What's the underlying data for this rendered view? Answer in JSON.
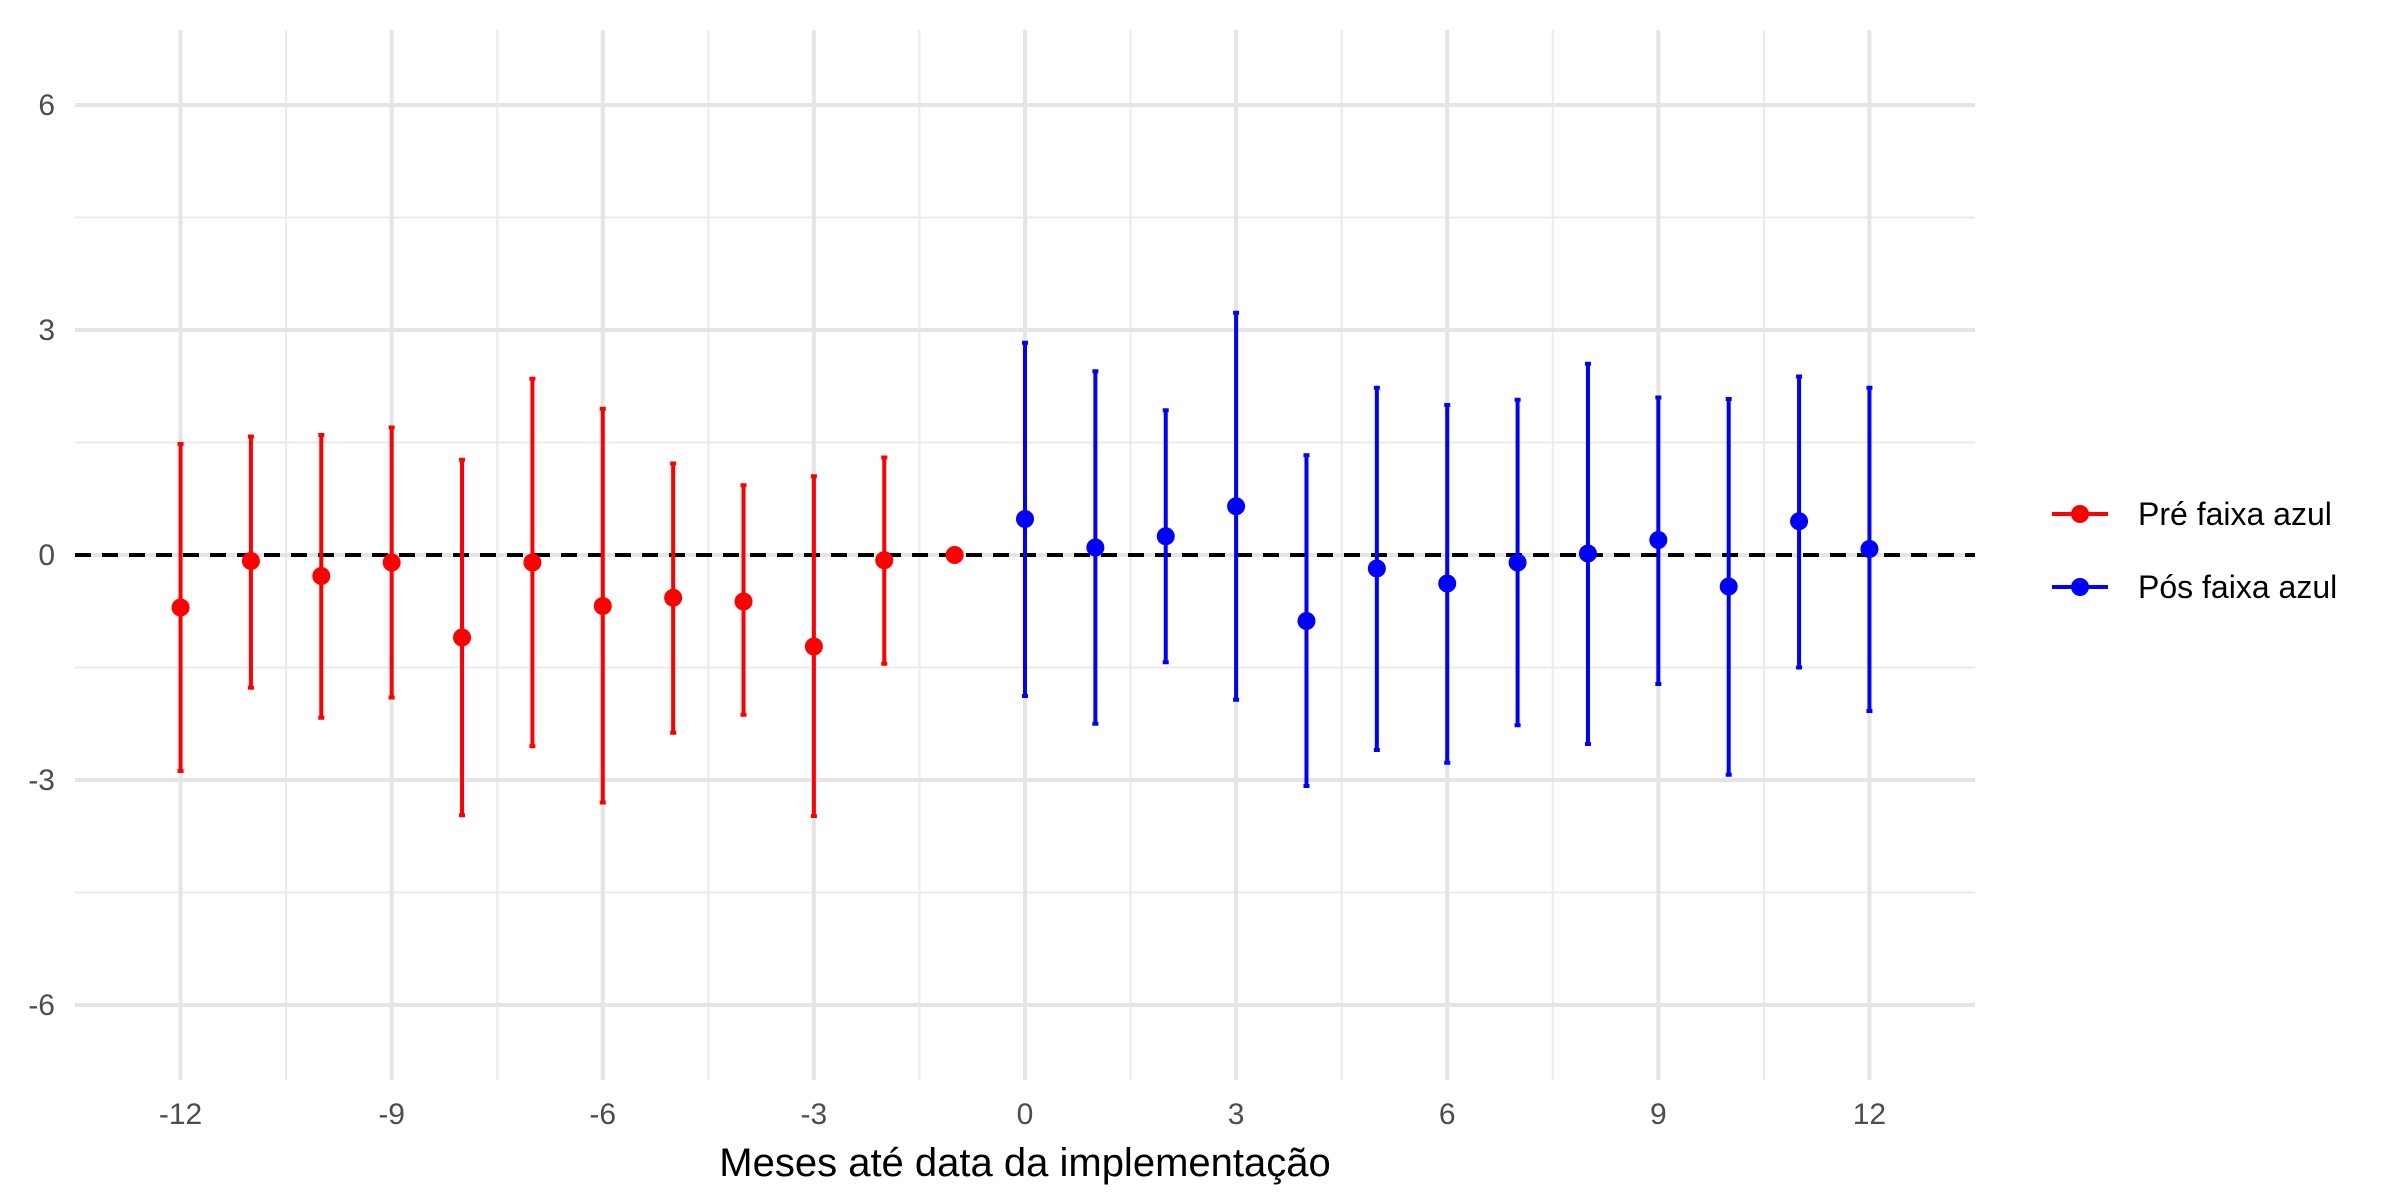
{
  "chart_data": {
    "type": "scatter",
    "title": "",
    "xlabel": "Meses até data da implementação",
    "ylabel": "",
    "xlim": [
      -13.5,
      13.5
    ],
    "ylim": [
      -7,
      7
    ],
    "x_ticks": [
      -12,
      -9,
      -6,
      -3,
      0,
      3,
      6,
      9,
      12
    ],
    "y_ticks": [
      -6,
      -3,
      0,
      3,
      6
    ],
    "grid": true,
    "reference_line": {
      "y": 0,
      "style": "dashed",
      "color": "#000000"
    },
    "legend_position": "right",
    "series": [
      {
        "name": "Pré faixa azul",
        "color": "#ff0000",
        "points": [
          {
            "x": -12,
            "y": -0.7,
            "lo": -2.88,
            "hi": 1.48
          },
          {
            "x": -11,
            "y": -0.08,
            "lo": -1.77,
            "hi": 1.58
          },
          {
            "x": -10,
            "y": -0.28,
            "lo": -2.17,
            "hi": 1.6
          },
          {
            "x": -9,
            "y": -0.1,
            "lo": -1.9,
            "hi": 1.7
          },
          {
            "x": -8,
            "y": -1.1,
            "lo": -3.47,
            "hi": 1.27
          },
          {
            "x": -7,
            "y": -0.1,
            "lo": -2.55,
            "hi": 2.35
          },
          {
            "x": -6,
            "y": -0.68,
            "lo": -3.3,
            "hi": 1.95
          },
          {
            "x": -5,
            "y": -0.57,
            "lo": -2.37,
            "hi": 1.22
          },
          {
            "x": -4,
            "y": -0.62,
            "lo": -2.13,
            "hi": 0.93
          },
          {
            "x": -3,
            "y": -1.22,
            "lo": -3.48,
            "hi": 1.05
          },
          {
            "x": -2,
            "y": -0.07,
            "lo": -1.45,
            "hi": 1.3
          },
          {
            "x": -1,
            "y": 0.0,
            "lo": 0.0,
            "hi": 0.0
          }
        ]
      },
      {
        "name": "Pós faixa azul",
        "color": "#0000ff",
        "points": [
          {
            "x": 0,
            "y": 0.48,
            "lo": -1.88,
            "hi": 2.83
          },
          {
            "x": 1,
            "y": 0.1,
            "lo": -2.25,
            "hi": 2.45
          },
          {
            "x": 2,
            "y": 0.25,
            "lo": -1.43,
            "hi": 1.93
          },
          {
            "x": 3,
            "y": 0.65,
            "lo": -1.93,
            "hi": 3.23
          },
          {
            "x": 4,
            "y": -0.88,
            "lo": -3.08,
            "hi": 1.33
          },
          {
            "x": 5,
            "y": -0.18,
            "lo": -2.6,
            "hi": 2.23
          },
          {
            "x": 6,
            "y": -0.38,
            "lo": -2.77,
            "hi": 2.0
          },
          {
            "x": 7,
            "y": -0.1,
            "lo": -2.27,
            "hi": 2.07
          },
          {
            "x": 8,
            "y": 0.02,
            "lo": -2.52,
            "hi": 2.55
          },
          {
            "x": 9,
            "y": 0.2,
            "lo": -1.72,
            "hi": 2.1
          },
          {
            "x": 10,
            "y": -0.42,
            "lo": -2.93,
            "hi": 2.08
          },
          {
            "x": 11,
            "y": 0.45,
            "lo": -1.5,
            "hi": 2.38
          },
          {
            "x": 12,
            "y": 0.08,
            "lo": -2.08,
            "hi": 2.23
          }
        ]
      }
    ]
  }
}
